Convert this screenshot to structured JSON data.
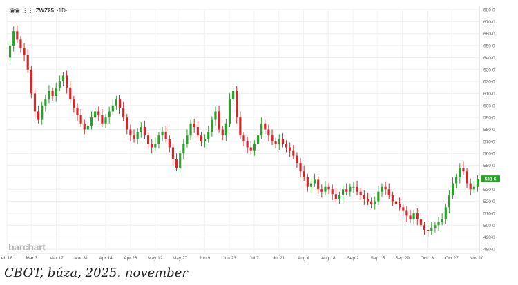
{
  "legend": {
    "symbol": "ZWZ25",
    "interval": "1D"
  },
  "brand": "barchart",
  "caption": "CBOT, búza, 2025. november",
  "colors": {
    "up": "#2ca02c",
    "down": "#d62728",
    "last_badge": "#2ca02c"
  },
  "chart_data": {
    "type": "candlestick",
    "ylim": [
      480,
      680
    ],
    "yticks": [
      "480-0",
      "490-0",
      "500-0",
      "510-0",
      "520-0",
      "530-0",
      "540-0",
      "550-0",
      "560-0",
      "570-0",
      "580-0",
      "590-0",
      "600-0",
      "610-0",
      "620-0",
      "630-0",
      "640-0",
      "650-0",
      "660-0",
      "670-0",
      "680-0"
    ],
    "xtick_labels": [
      "eb 18",
      "Mar 3",
      "Mar 17",
      "Mar 31",
      "Apr 14",
      "Apr 28",
      "May 12",
      "May 27",
      "Jun 9",
      "Jun 23",
      "Jul 7",
      "Jul 21",
      "Aug 4",
      "Aug 18",
      "Sep 2",
      "Sep 15",
      "Sep 29",
      "Oct 13",
      "Oct 27",
      "Nov 10"
    ],
    "last_price_label": "538-6",
    "last_price": 538.75,
    "close": [
      650,
      662,
      655,
      648,
      642,
      630,
      610,
      595,
      588,
      600,
      605,
      612,
      608,
      615,
      620,
      625,
      615,
      605,
      598,
      592,
      585,
      580,
      583,
      590,
      595,
      592,
      585,
      590,
      595,
      600,
      605,
      598,
      590,
      580,
      575,
      572,
      578,
      582,
      575,
      568,
      565,
      568,
      575,
      578,
      572,
      565,
      555,
      548,
      560,
      568,
      575,
      585,
      582,
      575,
      570,
      572,
      578,
      588,
      595,
      580,
      575,
      585,
      605,
      612,
      590,
      575,
      570,
      565,
      562,
      568,
      575,
      585,
      580,
      575,
      570,
      568,
      572,
      568,
      565,
      562,
      558,
      552,
      545,
      540,
      532,
      535,
      538,
      530,
      528,
      532,
      530,
      526,
      522,
      525,
      530,
      528,
      532,
      532,
      528,
      525,
      522,
      520,
      518,
      520,
      528,
      532,
      530,
      525,
      520,
      518,
      515,
      512,
      508,
      505,
      510,
      505,
      500,
      496,
      495,
      498,
      500,
      503,
      505,
      515,
      525,
      535,
      540,
      548,
      545,
      535,
      530,
      532,
      538.75
    ],
    "open": [
      640,
      650,
      662,
      655,
      648,
      642,
      630,
      610,
      595,
      588,
      600,
      605,
      612,
      608,
      615,
      620,
      625,
      615,
      605,
      598,
      592,
      585,
      580,
      583,
      590,
      595,
      592,
      585,
      590,
      595,
      600,
      605,
      598,
      590,
      580,
      575,
      572,
      578,
      582,
      575,
      568,
      565,
      568,
      575,
      578,
      572,
      565,
      555,
      548,
      560,
      568,
      575,
      585,
      582,
      575,
      570,
      572,
      578,
      588,
      595,
      580,
      575,
      585,
      605,
      612,
      590,
      575,
      570,
      565,
      562,
      568,
      575,
      585,
      580,
      575,
      570,
      568,
      572,
      568,
      565,
      562,
      558,
      552,
      545,
      540,
      532,
      535,
      538,
      530,
      528,
      532,
      530,
      526,
      522,
      525,
      530,
      528,
      532,
      532,
      528,
      525,
      522,
      520,
      518,
      520,
      528,
      532,
      530,
      525,
      520,
      518,
      515,
      512,
      508,
      505,
      510,
      505,
      500,
      496,
      495,
      498,
      500,
      503,
      505,
      515,
      525,
      535,
      540,
      548,
      545,
      535,
      530,
      532
    ]
  }
}
